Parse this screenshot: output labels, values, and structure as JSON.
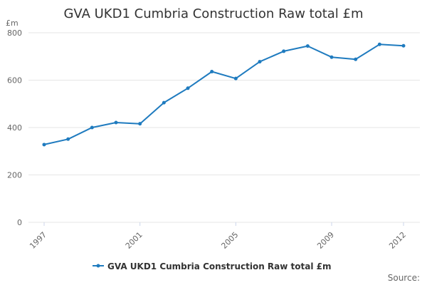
{
  "chart_data": {
    "type": "line",
    "title": "GVA UKD1 Cumbria Construction Raw total £m",
    "ylabel": "£m",
    "xlabel": "",
    "ylim": [
      0,
      800
    ],
    "yticks": [
      0,
      200,
      400,
      600,
      800
    ],
    "xticks": [
      "1997",
      "2001",
      "2005",
      "2009",
      "2012"
    ],
    "x": [
      1997,
      1998,
      1999,
      2000,
      2001,
      2002,
      2003,
      2004,
      2005,
      2006,
      2007,
      2008,
      2009,
      2010,
      2011,
      2012
    ],
    "series": [
      {
        "name": "GVA UKD1 Cumbria Construction Raw total £m",
        "color": "#1f7bbf",
        "values": [
          328,
          351,
          400,
          421,
          416,
          505,
          566,
          636,
          607,
          678,
          722,
          744,
          697,
          688,
          751,
          745
        ]
      }
    ],
    "grid": true,
    "legend_position": "bottom-center",
    "credits": "Source:"
  }
}
